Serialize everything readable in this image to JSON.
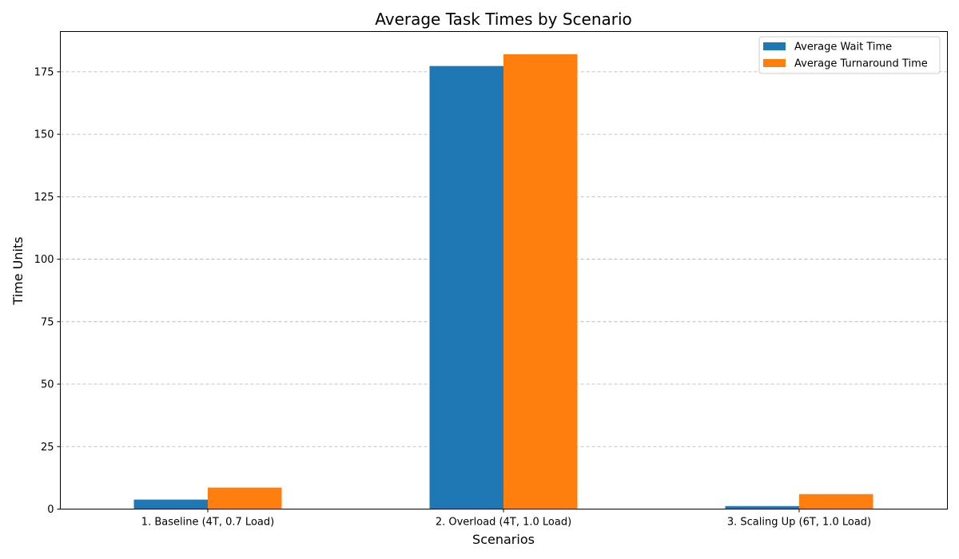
{
  "chart_data": {
    "type": "bar",
    "title": "Average Task Times by Scenario",
    "xlabel": "Scenarios",
    "ylabel": "Time Units",
    "categories": [
      "1. Baseline (4T, 0.7 Load)",
      "2. Overload (4T, 1.0 Load)",
      "3. Scaling Up (6T, 1.0 Load)"
    ],
    "series": [
      {
        "name": "Average Wait Time",
        "values": [
          3.8,
          177.3,
          1.2
        ],
        "color": "#1f77b4"
      },
      {
        "name": "Average Turnaround Time",
        "values": [
          8.6,
          182.0,
          6.0
        ],
        "color": "#ff7f0e"
      }
    ],
    "ylim": [
      0,
      191.1
    ],
    "yticks": [
      0,
      25,
      50,
      75,
      100,
      125,
      150,
      175
    ],
    "grid": "y-dashed",
    "legend_position": "top-right"
  }
}
